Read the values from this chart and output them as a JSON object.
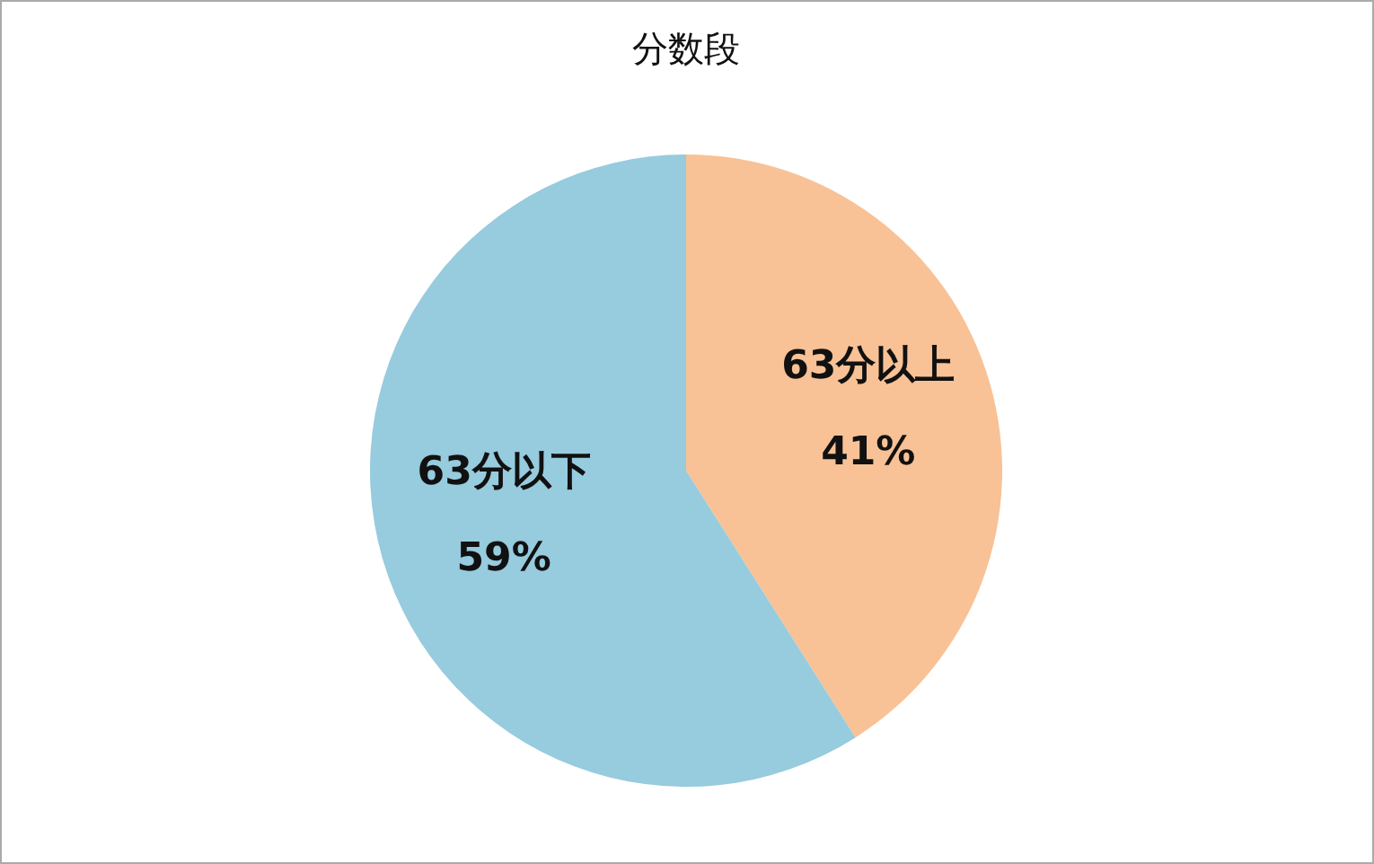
{
  "chart_data": {
    "type": "pie",
    "title": "分数段",
    "categories": [
      "63分以上",
      "63分以下"
    ],
    "values": [
      41,
      59
    ],
    "colors": [
      "#f8c296",
      "#97cbde"
    ],
    "value_labels": [
      "41%",
      "59%"
    ]
  }
}
